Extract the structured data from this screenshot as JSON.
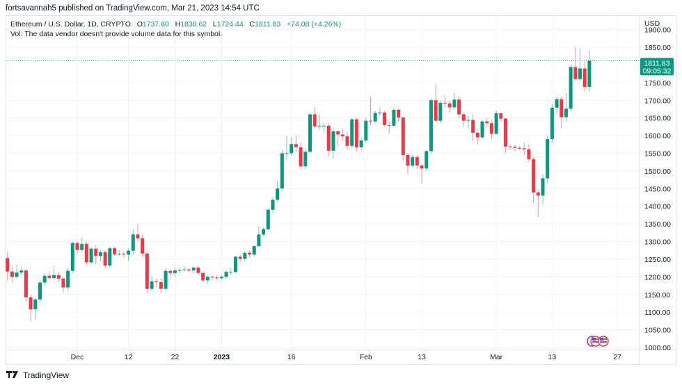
{
  "header": {
    "published": "fortsavannah5 published on TradingView.com, Mar 21, 2023 14:54 UTC"
  },
  "legend": {
    "symbol": "Ethereum / U.S. Dollar, 1D, CRYPTO",
    "o_label": "O",
    "o": "1737.80",
    "h_label": "H",
    "h": "1838.62",
    "l_label": "L",
    "l": "1724.44",
    "c_label": "C",
    "c": "1811.83",
    "change": "+74.08 (+4.26%)",
    "vol": "Vol: The data vendor doesn't provide volume data for this symbol."
  },
  "price_label": {
    "value": "1811.83",
    "countdown": "09:05:32"
  },
  "footer": {
    "brand": "TradingView"
  },
  "colors": {
    "up": "#089981",
    "down": "#F23645",
    "grid": "#f0f3fa"
  },
  "chart_data": {
    "type": "candlestick",
    "title": "Ethereum / U.S. Dollar, 1D, CRYPTO",
    "currency": "USD",
    "first_date": "2022-11-16",
    "last_date": "2023-03-21",
    "ylim": [
      1000,
      1900
    ],
    "y_ticks": [
      1000,
      1050,
      1100,
      1150,
      1200,
      1250,
      1300,
      1350,
      1400,
      1450,
      1500,
      1550,
      1600,
      1650,
      1700,
      1750,
      1850,
      1900
    ],
    "y_tick_labels": [
      "1000.00",
      "1050.00",
      "1100.00",
      "1150.00",
      "1200.00",
      "1250.00",
      "1300.00",
      "1350.00",
      "1400.00",
      "1450.00",
      "1500.00",
      "1550.00",
      "1600.00",
      "1650.00",
      "1700.00",
      "1750.00",
      "1850.00",
      "1900.00"
    ],
    "x_ticks": [
      {
        "label": "Dec",
        "index": 15
      },
      {
        "label": "12",
        "index": 26
      },
      {
        "label": "22",
        "index": 36
      },
      {
        "label": "2023",
        "index": 46,
        "bold": true
      },
      {
        "label": "16",
        "index": 61
      },
      {
        "label": "Feb",
        "index": 77
      },
      {
        "label": "13",
        "index": 89
      },
      {
        "label": "Mar",
        "index": 105
      },
      {
        "label": "13",
        "index": 117
      },
      {
        "label": "27",
        "index": 131
      }
    ],
    "first_open": 1253,
    "close": [
      1215,
      1200,
      1212,
      1218,
      1142,
      1108,
      1136,
      1184,
      1203,
      1197,
      1205,
      1195,
      1170,
      1217,
      1296,
      1276,
      1293,
      1241,
      1280,
      1259,
      1270,
      1232,
      1281,
      1264,
      1265,
      1263,
      1274,
      1320,
      1309,
      1266,
      1166,
      1187,
      1185,
      1166,
      1217,
      1211,
      1218,
      1219,
      1221,
      1218,
      1226,
      1211,
      1190,
      1200,
      1198,
      1196,
      1200,
      1214,
      1214,
      1257,
      1251,
      1268,
      1263,
      1287,
      1320,
      1335,
      1390,
      1418,
      1450,
      1550,
      1550,
      1576,
      1567,
      1513,
      1554,
      1660,
      1626,
      1628,
      1628,
      1557,
      1612,
      1603,
      1598,
      1571,
      1646,
      1567,
      1586,
      1642,
      1640,
      1664,
      1665,
      1630,
      1628,
      1673,
      1651,
      1545,
      1515,
      1539,
      1515,
      1507,
      1556,
      1700,
      1642,
      1693,
      1691,
      1680,
      1702,
      1660,
      1642,
      1644,
      1608,
      1595,
      1640,
      1635,
      1605,
      1663,
      1648,
      1569,
      1568,
      1565,
      1564,
      1561,
      1533,
      1439,
      1430,
      1479,
      1590,
      1679,
      1703,
      1652,
      1676,
      1794,
      1760,
      1790,
      1737.8,
      1811.83
    ],
    "high": [
      1270,
      1230,
      1235,
      1230,
      1222,
      1150,
      1140,
      1190,
      1210,
      1215,
      1230,
      1215,
      1200,
      1225,
      1300,
      1300,
      1310,
      1300,
      1285,
      1290,
      1275,
      1275,
      1285,
      1285,
      1275,
      1272,
      1280,
      1335,
      1350,
      1320,
      1270,
      1200,
      1195,
      1195,
      1225,
      1220,
      1225,
      1225,
      1230,
      1225,
      1230,
      1230,
      1215,
      1205,
      1205,
      1205,
      1205,
      1220,
      1225,
      1260,
      1262,
      1272,
      1275,
      1290,
      1345,
      1340,
      1395,
      1425,
      1470,
      1560,
      1600,
      1595,
      1600,
      1580,
      1565,
      1665,
      1680,
      1660,
      1635,
      1635,
      1620,
      1615,
      1620,
      1610,
      1650,
      1650,
      1595,
      1650,
      1710,
      1670,
      1680,
      1670,
      1640,
      1680,
      1675,
      1655,
      1550,
      1545,
      1545,
      1520,
      1560,
      1705,
      1745,
      1700,
      1715,
      1700,
      1720,
      1710,
      1665,
      1655,
      1660,
      1612,
      1645,
      1650,
      1645,
      1670,
      1665,
      1650,
      1572,
      1575,
      1570,
      1580,
      1575,
      1540,
      1445,
      1490,
      1600,
      1690,
      1710,
      1710,
      1720,
      1800,
      1850,
      1845,
      1810,
      1838.62
    ],
    "low": [
      1190,
      1185,
      1195,
      1205,
      1130,
      1075,
      1080,
      1130,
      1175,
      1190,
      1190,
      1185,
      1155,
      1160,
      1210,
      1265,
      1270,
      1235,
      1235,
      1235,
      1245,
      1225,
      1225,
      1260,
      1258,
      1255,
      1245,
      1265,
      1300,
      1255,
      1155,
      1160,
      1170,
      1155,
      1160,
      1200,
      1200,
      1210,
      1215,
      1212,
      1210,
      1205,
      1185,
      1180,
      1190,
      1190,
      1192,
      1195,
      1205,
      1210,
      1240,
      1245,
      1255,
      1258,
      1285,
      1315,
      1330,
      1380,
      1410,
      1445,
      1530,
      1545,
      1555,
      1505,
      1505,
      1550,
      1620,
      1615,
      1610,
      1540,
      1535,
      1570,
      1585,
      1560,
      1565,
      1555,
      1560,
      1580,
      1630,
      1635,
      1655,
      1625,
      1605,
      1625,
      1640,
      1530,
      1490,
      1510,
      1505,
      1465,
      1500,
      1550,
      1640,
      1635,
      1680,
      1665,
      1675,
      1650,
      1625,
      1620,
      1585,
      1575,
      1590,
      1625,
      1590,
      1600,
      1640,
      1550,
      1560,
      1555,
      1560,
      1545,
      1525,
      1410,
      1370,
      1405,
      1465,
      1580,
      1660,
      1620,
      1640,
      1670,
      1755,
      1755,
      1725,
      1724.44
    ]
  }
}
